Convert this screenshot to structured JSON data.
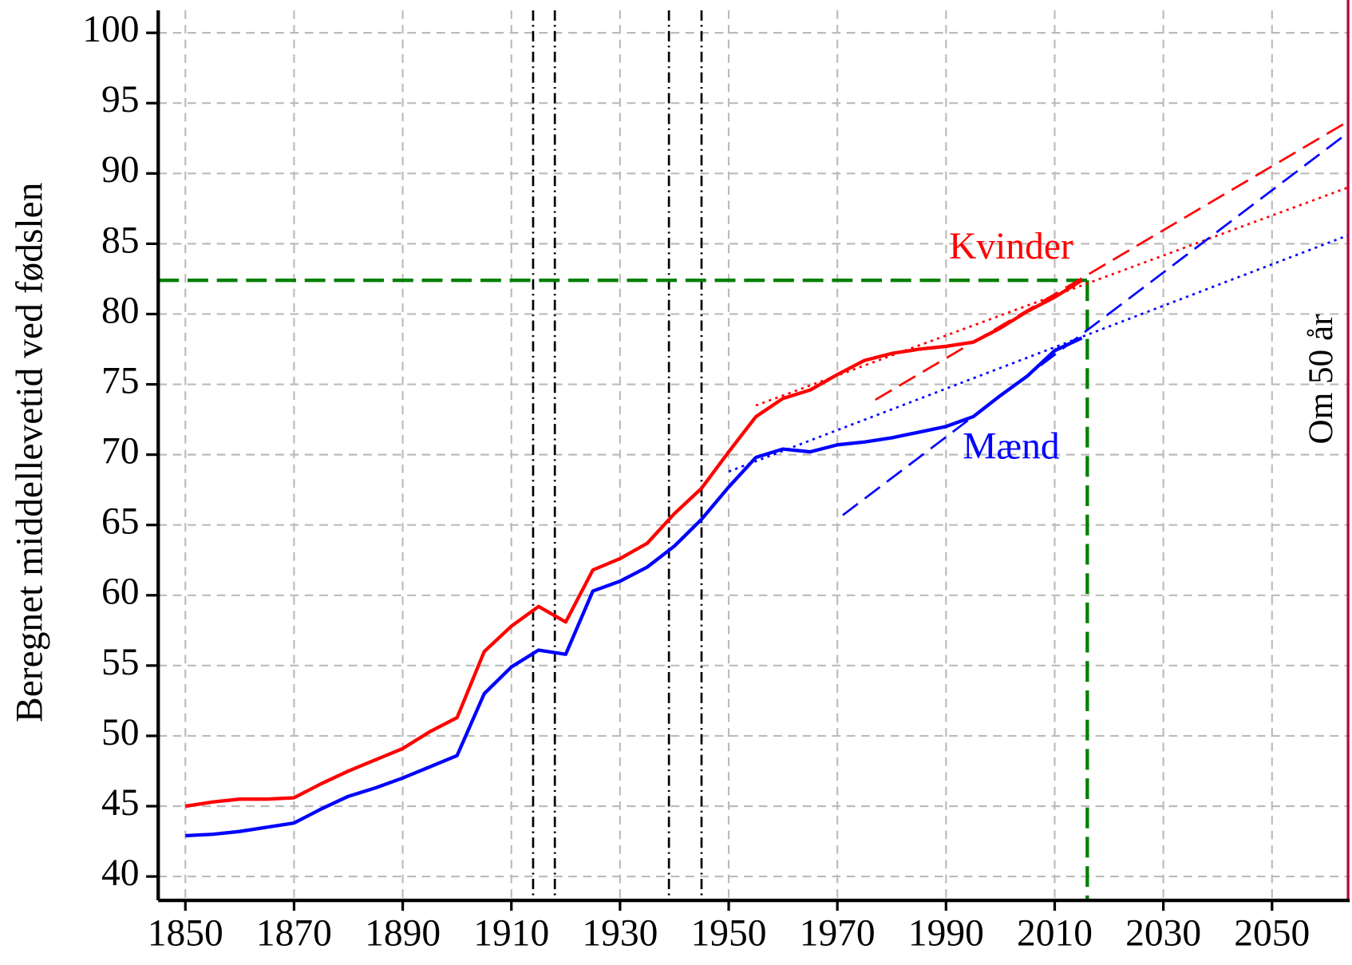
{
  "chart_data": {
    "type": "line",
    "y_label": "Beregnet middellevetid ved fødslen",
    "x": [
      1850,
      1855,
      1860,
      1865,
      1870,
      1875,
      1880,
      1885,
      1890,
      1895,
      1900,
      1905,
      1910,
      1915,
      1920,
      1925,
      1930,
      1935,
      1940,
      1945,
      1950,
      1955,
      1960,
      1965,
      1970,
      1975,
      1980,
      1985,
      1990,
      1995,
      2000,
      2005,
      2010,
      2015
    ],
    "series": [
      {
        "name": "Kvinder",
        "color": "#ff0000",
        "values": [
          45,
          45.3,
          45.5,
          45.5,
          45.6,
          46.6,
          47.5,
          48.3,
          49.1,
          50.3,
          51.3,
          56,
          57.8,
          59.2,
          58.1,
          61.8,
          62.6,
          63.7,
          65.8,
          67.6,
          70.2,
          72.7,
          74,
          74.6,
          75.7,
          76.7,
          77.2,
          77.5,
          77.7,
          78,
          79,
          80.2,
          81.2,
          82.4
        ]
      },
      {
        "name": "Mænd",
        "color": "#0000ff",
        "values": [
          42.9,
          43,
          43.2,
          43.5,
          43.8,
          44.8,
          45.7,
          46.3,
          47,
          47.8,
          48.6,
          53,
          54.9,
          56.1,
          55.8,
          60.3,
          61,
          62,
          63.5,
          65.4,
          67.7,
          69.8,
          70.4,
          70.2,
          70.7,
          70.9,
          71.2,
          71.6,
          72,
          72.7,
          74.2,
          75.6,
          77.4,
          78.3
        ]
      }
    ],
    "trend_lines": [
      {
        "color": "#ff0000",
        "style": "dotted",
        "x": [
          1955,
          2064
        ],
        "values": [
          73.5,
          89
        ]
      },
      {
        "color": "#ff0000",
        "style": "dashed",
        "x": [
          1977,
          2064
        ],
        "values": [
          73.9,
          93.7
        ]
      },
      {
        "color": "#0000ff",
        "style": "dotted",
        "x": [
          1950,
          2064
        ],
        "values": [
          68.8,
          85.6
        ]
      },
      {
        "color": "#0000ff",
        "style": "dashed",
        "x": [
          1971,
          2064
        ],
        "values": [
          65.7,
          92.9
        ]
      }
    ],
    "war_lines": [
      1914,
      1918,
      1939,
      1945
    ],
    "target": {
      "color": "#008000",
      "x": 2016,
      "y": 82.4
    },
    "horizon": {
      "color": "#c0003c",
      "x": 2064,
      "label": "Om 50 år"
    },
    "xlim": [
      1845,
      2064.3
    ],
    "ylim": [
      38.3,
      101.6
    ],
    "xticks": [
      1850,
      1870,
      1890,
      1910,
      1930,
      1950,
      1970,
      1990,
      2010,
      2030,
      2050
    ],
    "yticks": [
      40,
      45,
      50,
      55,
      60,
      65,
      70,
      75,
      80,
      85,
      90,
      95,
      100
    ],
    "grid": true
  }
}
